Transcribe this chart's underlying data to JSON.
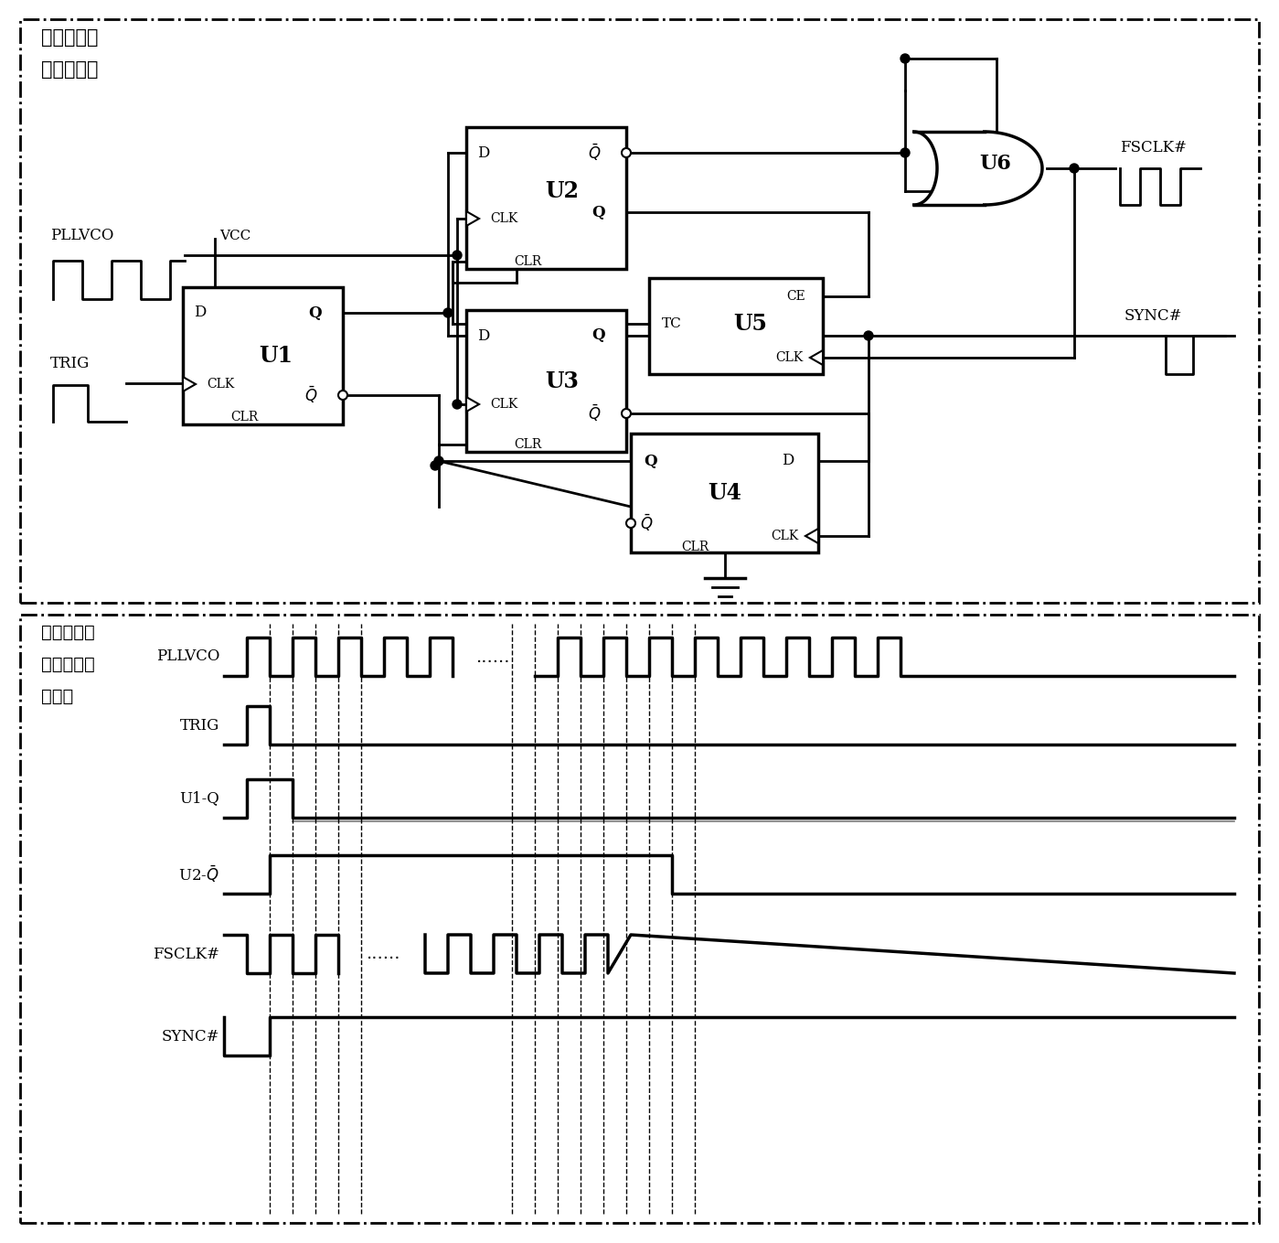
{
  "bg_color": "#ffffff",
  "top_label_line1": "采样控制信",
  "top_label_line2": "号产生电路",
  "bot_label_line1": "采样控制信",
  "bot_label_line2": "号产生电路",
  "bot_label_line3": "时序图",
  "pllvco": "PLLVCO",
  "trig": "TRIG",
  "vcc": "VCC",
  "fsclk": "FSCLK#",
  "sync": "SYNC#",
  "u1": "U1",
  "u2": "U2",
  "u3": "U3",
  "u4": "U4",
  "u5": "U5",
  "u6": "U6",
  "sig_labels": [
    "PLLVCO",
    "TRIG",
    "U1-Q",
    "SYNC#",
    "FSCLK#"
  ],
  "u2qbar_label": "U2-̅Q̅"
}
